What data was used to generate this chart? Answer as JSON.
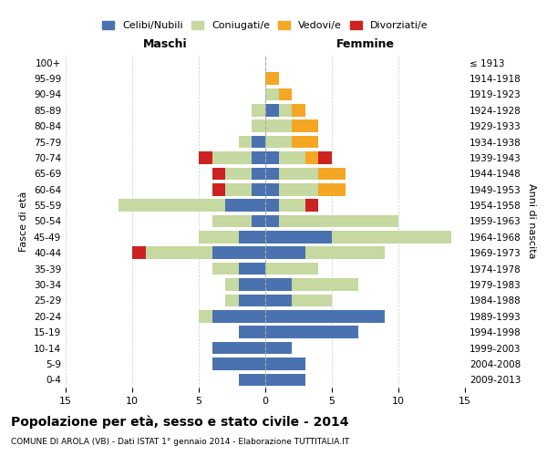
{
  "age_groups": [
    "0-4",
    "5-9",
    "10-14",
    "15-19",
    "20-24",
    "25-29",
    "30-34",
    "35-39",
    "40-44",
    "45-49",
    "50-54",
    "55-59",
    "60-64",
    "65-69",
    "70-74",
    "75-79",
    "80-84",
    "85-89",
    "90-94",
    "95-99",
    "100+"
  ],
  "birth_years": [
    "2009-2013",
    "2004-2008",
    "1999-2003",
    "1994-1998",
    "1989-1993",
    "1984-1988",
    "1979-1983",
    "1974-1978",
    "1969-1973",
    "1964-1968",
    "1959-1963",
    "1954-1958",
    "1949-1953",
    "1944-1948",
    "1939-1943",
    "1934-1938",
    "1929-1933",
    "1924-1928",
    "1919-1923",
    "1914-1918",
    "≤ 1913"
  ],
  "maschi": {
    "celibi": [
      2,
      4,
      4,
      2,
      4,
      2,
      2,
      2,
      4,
      2,
      1,
      3,
      1,
      1,
      1,
      1,
      0,
      0,
      0,
      0,
      0
    ],
    "coniugati": [
      0,
      0,
      0,
      0,
      1,
      1,
      1,
      2,
      5,
      3,
      3,
      8,
      2,
      2,
      3,
      1,
      1,
      1,
      0,
      0,
      0
    ],
    "vedovi": [
      0,
      0,
      0,
      0,
      0,
      0,
      0,
      0,
      0,
      0,
      0,
      0,
      0,
      0,
      0,
      0,
      0,
      0,
      0,
      0,
      0
    ],
    "divorziati": [
      0,
      0,
      0,
      0,
      0,
      0,
      0,
      0,
      1,
      0,
      0,
      0,
      1,
      1,
      1,
      0,
      0,
      0,
      0,
      0,
      0
    ]
  },
  "femmine": {
    "nubili": [
      3,
      3,
      2,
      7,
      9,
      2,
      2,
      0,
      3,
      5,
      1,
      1,
      1,
      1,
      1,
      0,
      0,
      1,
      0,
      0,
      0
    ],
    "coniugate": [
      0,
      0,
      0,
      0,
      0,
      3,
      5,
      4,
      6,
      9,
      9,
      2,
      3,
      3,
      2,
      2,
      2,
      1,
      1,
      0,
      0
    ],
    "vedove": [
      0,
      0,
      0,
      0,
      0,
      0,
      0,
      0,
      0,
      0,
      0,
      0,
      2,
      2,
      1,
      2,
      2,
      1,
      1,
      1,
      0
    ],
    "divorziate": [
      0,
      0,
      0,
      0,
      0,
      0,
      0,
      0,
      0,
      0,
      0,
      1,
      0,
      0,
      1,
      0,
      0,
      0,
      0,
      0,
      0
    ]
  },
  "colors": {
    "celibi": "#4a72b0",
    "coniugati": "#c5d9a0",
    "vedovi": "#f5a623",
    "divorziati": "#cc2222"
  },
  "xlim": 15,
  "title": "Popolazione per età, sesso e stato civile - 2014",
  "subtitle": "COMUNE DI AROLA (VB) - Dati ISTAT 1° gennaio 2014 - Elaborazione TUTTITALIA.IT",
  "ylabel": "Fasce di età",
  "y2label": "Anni di nascita",
  "maschi_label": "Maschi",
  "femmine_label": "Femmine",
  "legend_labels": [
    "Celibi/Nubili",
    "Coniugati/e",
    "Vedovi/e",
    "Divorziati/e"
  ],
  "bg_color": "#ffffff",
  "grid_color": "#cccccc"
}
